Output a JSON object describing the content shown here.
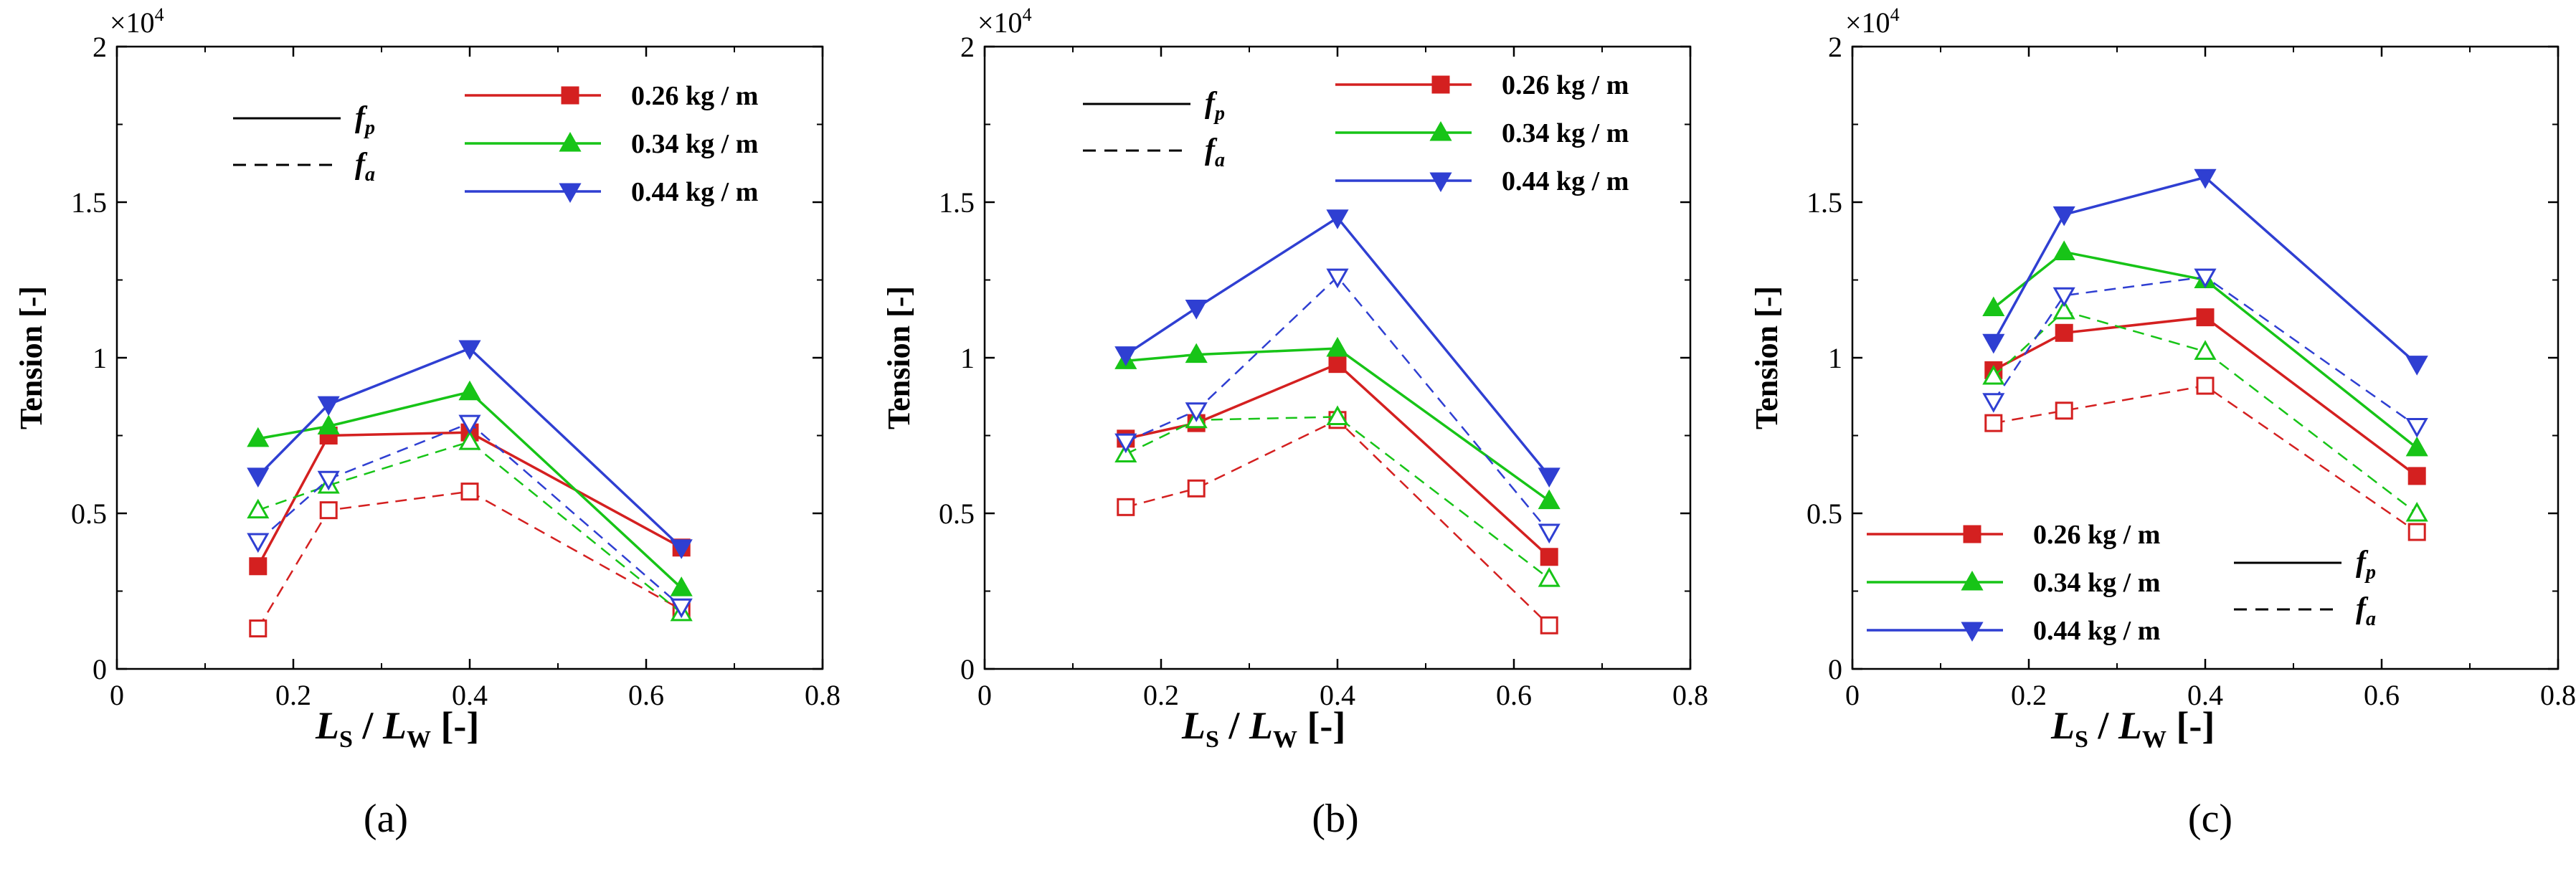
{
  "figure": {
    "ylabel": "Tension [-]",
    "xlabel": {
      "main_L1": "L",
      "sub1": "S",
      "slash": " / ",
      "main_L2": "L",
      "sub2": "W",
      "unit": " [-]"
    },
    "multiplier": {
      "base": "×10",
      "exp": "4"
    },
    "line_key": [
      {
        "label": "f",
        "sub": "p",
        "style": "solid"
      },
      {
        "label": "f",
        "sub": "a",
        "style": "dashed"
      }
    ],
    "series_styles": [
      {
        "name": "0.26 kg / m",
        "color": "#d42020",
        "marker": "square"
      },
      {
        "name": "0.34 kg / m",
        "color": "#17c417",
        "marker": "triangle-up"
      },
      {
        "name": "0.44 kg / m",
        "color": "#2f3fd2",
        "marker": "triangle-down"
      }
    ]
  },
  "chart_data": [
    {
      "type": "line",
      "panel_label": "(a)",
      "x": [
        0.16,
        0.24,
        0.4,
        0.64
      ],
      "xlim": [
        0,
        0.8
      ],
      "ylim": [
        0,
        20000
      ],
      "xticks": [
        "0",
        "0.2",
        "0.4",
        "0.6",
        "0.8"
      ],
      "yticks": [
        "0",
        "0.5",
        "1",
        "1.5",
        "2"
      ],
      "legend_position": "top-right",
      "series": [
        {
          "name": "0.26 kg / m",
          "force": "f_p",
          "values": [
            3300,
            7500,
            7600,
            3900
          ]
        },
        {
          "name": "0.34 kg / m",
          "force": "f_p",
          "values": [
            7400,
            7800,
            8900,
            2600
          ]
        },
        {
          "name": "0.44 kg / m",
          "force": "f_p",
          "values": [
            6200,
            8500,
            10300,
            3900
          ]
        },
        {
          "name": "0.26 kg / m",
          "force": "f_a",
          "values": [
            1300,
            5100,
            5700,
            1900
          ]
        },
        {
          "name": "0.34 kg / m",
          "force": "f_a",
          "values": [
            5100,
            5900,
            7300,
            1800
          ]
        },
        {
          "name": "0.44 kg / m",
          "force": "f_a",
          "values": [
            4100,
            6100,
            7900,
            2000
          ]
        }
      ]
    },
    {
      "type": "line",
      "panel_label": "(b)",
      "x": [
        0.16,
        0.24,
        0.4,
        0.64
      ],
      "xlim": [
        0,
        0.8
      ],
      "ylim": [
        0,
        20000
      ],
      "xticks": [
        "0",
        "0.2",
        "0.4",
        "0.6",
        "0.8"
      ],
      "yticks": [
        "0",
        "0.5",
        "1",
        "1.5",
        "2"
      ],
      "legend_position": "top-right",
      "series": [
        {
          "name": "0.26 kg / m",
          "force": "f_p",
          "values": [
            7400,
            7900,
            9800,
            3600
          ]
        },
        {
          "name": "0.34 kg / m",
          "force": "f_p",
          "values": [
            9900,
            10100,
            10300,
            5400
          ]
        },
        {
          "name": "0.44 kg / m",
          "force": "f_p",
          "values": [
            10100,
            11600,
            14500,
            6200
          ]
        },
        {
          "name": "0.26 kg / m",
          "force": "f_a",
          "values": [
            5200,
            5800,
            8000,
            1400
          ]
        },
        {
          "name": "0.34 kg / m",
          "force": "f_a",
          "values": [
            6900,
            8000,
            8100,
            2900
          ]
        },
        {
          "name": "0.44 kg / m",
          "force": "f_a",
          "values": [
            7300,
            8300,
            12600,
            4400
          ]
        }
      ]
    },
    {
      "type": "line",
      "panel_label": "(c)",
      "x": [
        0.16,
        0.24,
        0.4,
        0.64
      ],
      "xlim": [
        0,
        0.8
      ],
      "ylim": [
        0,
        20000
      ],
      "xticks": [
        "0",
        "0.2",
        "0.4",
        "0.6",
        "0.8"
      ],
      "yticks": [
        "0",
        "0.5",
        "1",
        "1.5",
        "2"
      ],
      "legend_position": "bottom-left",
      "series": [
        {
          "name": "0.26 kg / m",
          "force": "f_p",
          "values": [
            9600,
            10800,
            11300,
            6200
          ]
        },
        {
          "name": "0.34 kg / m",
          "force": "f_p",
          "values": [
            11600,
            13400,
            12500,
            7100
          ]
        },
        {
          "name": "0.44 kg / m",
          "force": "f_p",
          "values": [
            10500,
            14600,
            15800,
            9800
          ]
        },
        {
          "name": "0.26 kg / m",
          "force": "f_a",
          "values": [
            7900,
            8300,
            9100,
            4400
          ]
        },
        {
          "name": "0.34 kg / m",
          "force": "f_a",
          "values": [
            9400,
            11500,
            10200,
            5000
          ]
        },
        {
          "name": "0.44 kg / m",
          "force": "f_a",
          "values": [
            8600,
            12000,
            12600,
            7800
          ]
        }
      ]
    }
  ]
}
